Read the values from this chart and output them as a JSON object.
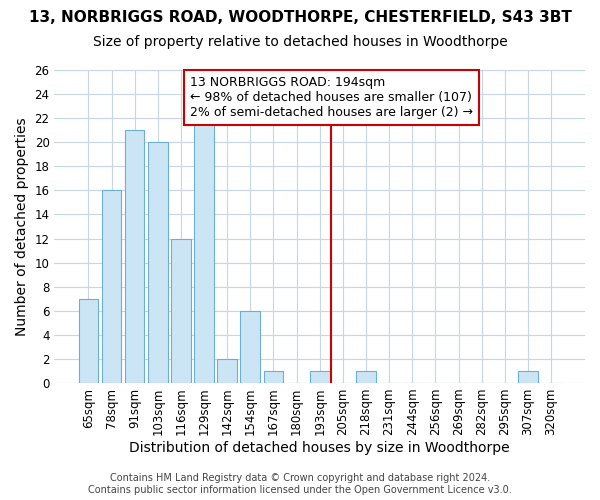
{
  "title1": "13, NORBRIGGS ROAD, WOODTHORPE, CHESTERFIELD, S43 3BT",
  "title2": "Size of property relative to detached houses in Woodthorpe",
  "xlabel": "Distribution of detached houses by size in Woodthorpe",
  "ylabel": "Number of detached properties",
  "categories": [
    "65sqm",
    "78sqm",
    "91sqm",
    "103sqm",
    "116sqm",
    "129sqm",
    "142sqm",
    "154sqm",
    "167sqm",
    "180sqm",
    "193sqm",
    "205sqm",
    "218sqm",
    "231sqm",
    "244sqm",
    "256sqm",
    "269sqm",
    "282sqm",
    "295sqm",
    "307sqm",
    "320sqm"
  ],
  "values": [
    7,
    16,
    21,
    20,
    12,
    22,
    2,
    6,
    1,
    0,
    1,
    0,
    1,
    0,
    0,
    0,
    0,
    0,
    0,
    1,
    0
  ],
  "bar_color": "#cce5f5",
  "bar_edge_color": "#6aafd6",
  "highlight_line_color": "#cc0000",
  "annotation_text": "13 NORBRIGGS ROAD: 194sqm\n← 98% of detached houses are smaller (107)\n2% of semi-detached houses are larger (2) →",
  "annotation_box_edge": "#cc0000",
  "ylim": [
    0,
    26
  ],
  "yticks": [
    0,
    2,
    4,
    6,
    8,
    10,
    12,
    14,
    16,
    18,
    20,
    22,
    24,
    26
  ],
  "footer": "Contains HM Land Registry data © Crown copyright and database right 2024.\nContains public sector information licensed under the Open Government Licence v3.0.",
  "bg_color": "#ffffff",
  "grid_color": "#c8d4e8",
  "title1_fontsize": 11,
  "title2_fontsize": 10,
  "annotation_fontsize": 9,
  "axis_label_fontsize": 10,
  "tick_fontsize": 8.5
}
